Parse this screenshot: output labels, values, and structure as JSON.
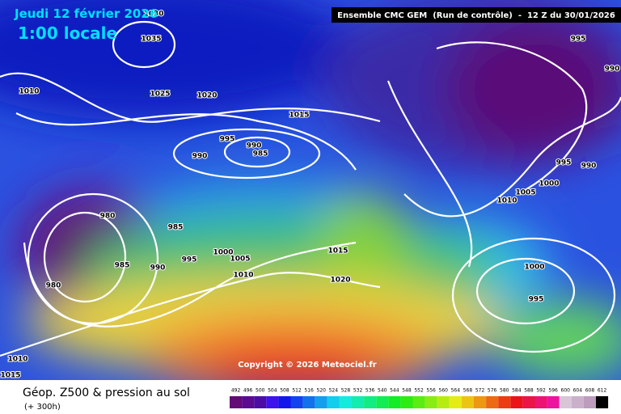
{
  "header": {
    "date": "Jeudi 12 février 2026",
    "time": "1:00 locale",
    "run": "Ensemble CMC GEM  (Run de contrôle)  -  12 Z du 30/01/2026",
    "copyright": "Copyright © 2026 Meteociel.fr"
  },
  "footer": {
    "title": "Géop. Z500 & pression au sol",
    "lead": "(+ 300h)"
  },
  "isobar_labels": [
    1030,
    1035,
    1010,
    1025,
    1020,
    1015,
    995,
    990,
    985,
    990,
    980,
    985,
    985,
    990,
    995,
    1000,
    1005,
    1010,
    980,
    1015,
    1020,
    995,
    990,
    995,
    990,
    1000,
    1005,
    1010,
    1000,
    995,
    1010,
    1015
  ],
  "scale": [
    492,
    496,
    500,
    504,
    508,
    512,
    516,
    520,
    524,
    528,
    532,
    536,
    540,
    544,
    548,
    552,
    556,
    560,
    564,
    568,
    572,
    576,
    580,
    584,
    588,
    592,
    596,
    600,
    604,
    608,
    612
  ]
}
